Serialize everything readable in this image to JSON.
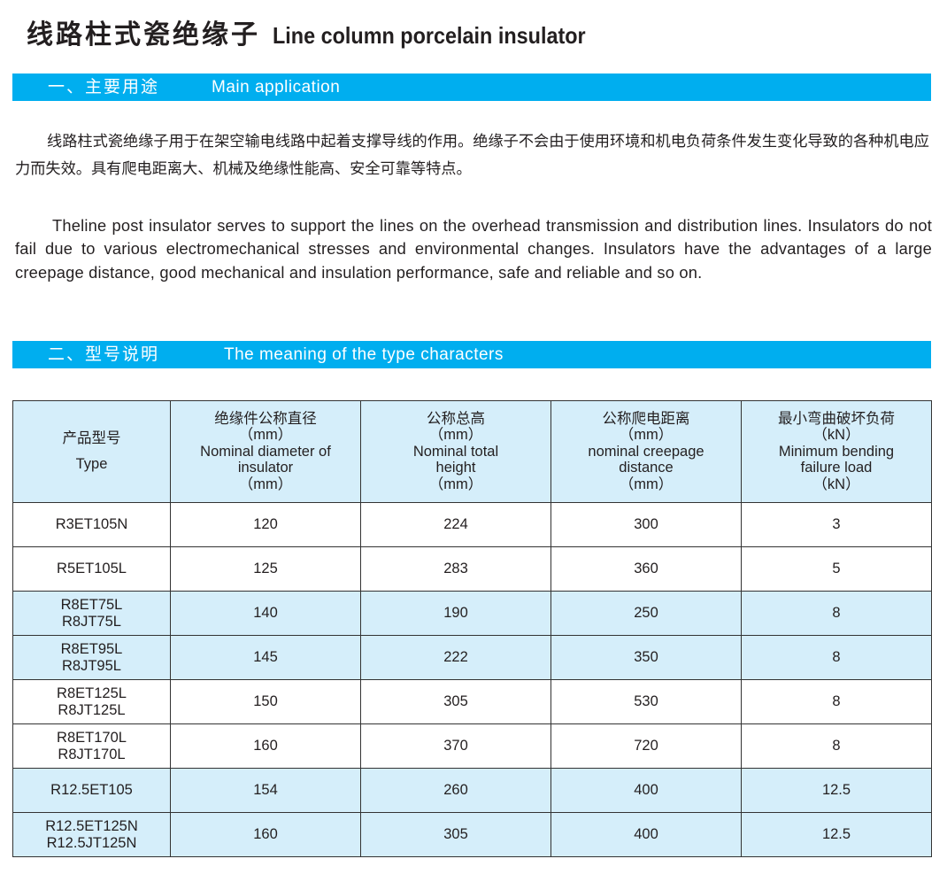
{
  "title": {
    "cn": "线路柱式瓷绝缘子",
    "en": "Line column porcelain insulator"
  },
  "section1": {
    "cn": "一、主要用途",
    "en": "Main application"
  },
  "para_cn": "线路柱式瓷绝缘子用于在架空输电线路中起着支撑导线的作用。绝缘子不会由于使用环境和机电负荷条件发生变化导致的各种机电应力而失效。具有爬电距离大、机械及绝缘性能高、安全可靠等特点。",
  "para_en": "Theline post insulator serves to support the lines  on the overhead transmission and distribution lines. Insulators do not fail due to various electromechanical stresses and environmental changes. Insulators have the advantages of a large creepage distance, good mechanical and insulation performance, safe and reliable and so on.",
  "section2": {
    "cn": "二、型号说明",
    "en": "The meaning of the type characters"
  },
  "table": {
    "headers": [
      [
        "产品型号",
        "Type"
      ],
      [
        "绝缘件公称直径",
        "（mm）",
        "Nominal diameter of",
        "insulator",
        "（mm）"
      ],
      [
        "公称总高",
        "（mm）",
        "Nominal total",
        "height",
        "（mm）"
      ],
      [
        "公称爬电距离",
        "（mm）",
        "nominal creepage",
        "distance",
        "（mm）"
      ],
      [
        "最小弯曲破坏负荷",
        "（kN）",
        "Minimum bending",
        "failure load",
        "（kN）"
      ]
    ],
    "rows": [
      {
        "type": [
          "R3ET105N"
        ],
        "diameter": "120",
        "height": "224",
        "creepage": "300",
        "load": "3",
        "shade": "white"
      },
      {
        "type": [
          "R5ET105L"
        ],
        "diameter": "125",
        "height": "283",
        "creepage": "360",
        "load": "5",
        "shade": "white"
      },
      {
        "type": [
          "R8ET75L",
          "R8JT75L"
        ],
        "diameter": "140",
        "height": "190",
        "creepage": "250",
        "load": "8",
        "shade": "blue"
      },
      {
        "type": [
          "R8ET95L",
          "R8JT95L"
        ],
        "diameter": "145",
        "height": "222",
        "creepage": "350",
        "load": "8",
        "shade": "blue"
      },
      {
        "type": [
          "R8ET125L",
          "R8JT125L"
        ],
        "diameter": "150",
        "height": "305",
        "creepage": "530",
        "load": "8",
        "shade": "white"
      },
      {
        "type": [
          "R8ET170L",
          "R8JT170L"
        ],
        "diameter": "160",
        "height": "370",
        "creepage": "720",
        "load": "8",
        "shade": "white"
      },
      {
        "type": [
          "R12.5ET105"
        ],
        "diameter": "154",
        "height": "260",
        "creepage": "400",
        "load": "12.5",
        "shade": "blue"
      },
      {
        "type": [
          "R12.5ET125N",
          "R12.5JT125N"
        ],
        "diameter": "160",
        "height": "305",
        "creepage": "400",
        "load": "12.5",
        "shade": "blue"
      }
    ]
  },
  "colors": {
    "bar": "#00aeef",
    "table_shade": "#d5eefa"
  }
}
